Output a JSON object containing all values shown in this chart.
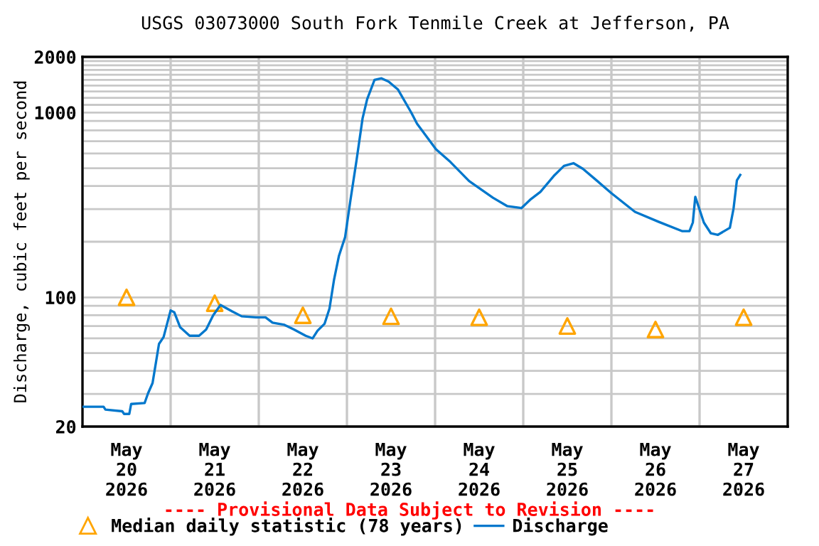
{
  "chart_data": {
    "type": "line",
    "title": "USGS 03073000 South Fork Tenmile Creek at Jefferson, PA",
    "ylabel": "Discharge, cubic feet per second",
    "log": "y",
    "ylim": [
      20,
      2000
    ],
    "yticks": [
      20,
      {
        "value": 30,
        "label": null
      },
      {
        "value": 40,
        "label": null
      },
      {
        "value": 50,
        "label": null
      },
      {
        "value": 60,
        "label": null
      },
      {
        "value": 70,
        "label": null
      },
      {
        "value": 80,
        "label": null
      },
      {
        "value": 90,
        "label": null
      },
      100,
      {
        "value": 200,
        "label": null
      },
      {
        "value": 300,
        "label": null
      },
      {
        "value": 400,
        "label": null
      },
      {
        "value": 500,
        "label": null
      },
      {
        "value": 600,
        "label": null
      },
      {
        "value": 700,
        "label": null
      },
      {
        "value": 800,
        "label": null
      },
      {
        "value": 900,
        "label": null
      },
      1000,
      {
        "value": 1100,
        "label": null
      },
      {
        "value": 1200,
        "label": null
      },
      {
        "value": 1300,
        "label": null
      },
      {
        "value": 1400,
        "label": null
      },
      {
        "value": 1500,
        "label": null
      },
      {
        "value": 1600,
        "label": null
      },
      {
        "value": 1700,
        "label": null
      },
      {
        "value": 1800,
        "label": null
      },
      {
        "value": 1900,
        "label": null
      },
      2000
    ],
    "xlim": [
      "2026-05-20T00:00",
      "2026-05-28T00:00"
    ],
    "xticks": [
      {
        "value": "2026-05-20T00:00",
        "label": null
      },
      {
        "value": "2026-05-20T12:00",
        "label": "May\n20\n2026"
      },
      {
        "value": "2026-05-21T00:00",
        "label": null
      },
      {
        "value": "2026-05-21T12:00",
        "label": "May\n21\n2026"
      },
      {
        "value": "2026-05-22T00:00",
        "label": null
      },
      {
        "value": "2026-05-22T12:00",
        "label": "May\n22\n2026"
      },
      {
        "value": "2026-05-23T00:00",
        "label": null
      },
      {
        "value": "2026-05-23T12:00",
        "label": "May\n23\n2026"
      },
      {
        "value": "2026-05-24T00:00",
        "label": null
      },
      {
        "value": "2026-05-24T12:00",
        "label": "May\n24\n2026"
      },
      {
        "value": "2026-05-25T00:00",
        "label": null
      },
      {
        "value": "2026-05-25T12:00",
        "label": "May\n25\n2026"
      },
      {
        "value": "2026-05-26T00:00",
        "label": null
      },
      {
        "value": "2026-05-26T12:00",
        "label": "May\n26\n2026"
      },
      {
        "value": "2026-05-27T00:00",
        "label": null
      },
      {
        "value": "2026-05-27T12:00",
        "label": "May\n27\n2026"
      },
      {
        "value": "2026-05-28T00:00",
        "label": null
      }
    ],
    "grid": true,
    "legend": "bottom",
    "annotations": [
      "---- Provisional Data Subject to Revision ----"
    ],
    "series": [
      {
        "name": "Median daily statistic (78 years)",
        "type": "scatter",
        "marker": "triangle",
        "color": "#ffa500",
        "x": [
          "2026-05-20T12:00",
          "2026-05-21T12:00",
          "2026-05-22T12:00",
          "2026-05-23T12:00",
          "2026-05-24T12:00",
          "2026-05-25T12:00",
          "2026-05-26T12:00",
          "2026-05-27T12:00"
        ],
        "values": [
          100,
          93,
          80,
          79,
          78,
          70,
          67,
          78
        ]
      },
      {
        "name": "Discharge",
        "color": "#0077cc",
        "x": [
          "2026-05-20T00:00",
          "2026-05-20T05:45",
          "2026-05-20T06:15",
          "2026-05-20T10:50",
          "2026-05-20T11:20",
          "2026-05-20T12:45",
          "2026-05-20T13:15",
          "2026-05-20T16:55",
          "2026-05-20T17:50",
          "2026-05-20T19:05",
          "2026-05-20T20:50",
          "2026-05-20T22:05",
          "2026-05-21T00:00",
          "2026-05-21T01:00",
          "2026-05-21T02:35",
          "2026-05-21T05:10",
          "2026-05-21T07:45",
          "2026-05-21T09:40",
          "2026-05-21T11:35",
          "2026-05-21T13:35",
          "2026-05-21T16:45",
          "2026-05-21T19:20",
          "2026-05-21T23:15",
          "2026-05-22T01:50",
          "2026-05-22T03:45",
          "2026-05-22T07:00",
          "2026-05-22T09:35",
          "2026-05-22T12:45",
          "2026-05-22T14:40",
          "2026-05-22T16:00",
          "2026-05-22T17:55",
          "2026-05-22T19:15",
          "2026-05-22T20:30",
          "2026-05-22T21:50",
          "2026-05-22T23:30",
          "2026-05-23T01:00",
          "2026-05-23T02:35",
          "2026-05-23T04:15",
          "2026-05-23T05:30",
          "2026-05-23T07:30",
          "2026-05-23T09:25",
          "2026-05-23T11:20",
          "2026-05-23T13:55",
          "2026-05-23T17:30",
          "2026-05-23T19:05",
          "2026-05-24T00:15",
          "2026-05-24T04:10",
          "2026-05-24T09:15",
          "2026-05-24T15:45",
          "2026-05-24T19:35",
          "2026-05-24T23:30",
          "2026-05-25T02:05",
          "2026-05-25T04:40",
          "2026-05-25T08:30",
          "2026-05-25T11:05",
          "2026-05-25T13:40",
          "2026-05-25T16:15",
          "2026-05-25T20:10",
          "2026-05-26T00:00",
          "2026-05-26T06:25",
          "2026-05-26T12:55",
          "2026-05-26T19:20",
          "2026-05-26T21:15",
          "2026-05-26T22:10",
          "2026-05-26T22:50",
          "2026-05-26T23:55",
          "2026-05-27T01:10",
          "2026-05-27T03:05",
          "2026-05-27T05:00",
          "2026-05-27T08:15",
          "2026-05-27T09:15",
          "2026-05-27T10:10",
          "2026-05-27T11:05"
        ],
        "values": [
          25.6,
          25.6,
          24.7,
          24.2,
          23.4,
          23.4,
          26.5,
          26.8,
          30.2,
          34.4,
          56,
          61,
          85,
          83,
          69,
          62,
          62,
          67,
          80,
          91,
          84,
          79,
          78,
          78,
          73,
          71,
          67,
          62,
          60,
          66,
          72,
          87,
          125,
          168,
          212,
          340,
          546,
          928,
          1180,
          1500,
          1530,
          1470,
          1330,
          1000,
          870,
          632,
          540,
          426,
          346,
          312,
          304,
          340,
          372,
          458,
          514,
          532,
          496,
          426,
          366,
          290,
          256,
          228,
          228,
          254,
          350,
          302,
          254,
          222,
          218,
          238,
          302,
          430,
          460
        ]
      }
    ]
  }
}
